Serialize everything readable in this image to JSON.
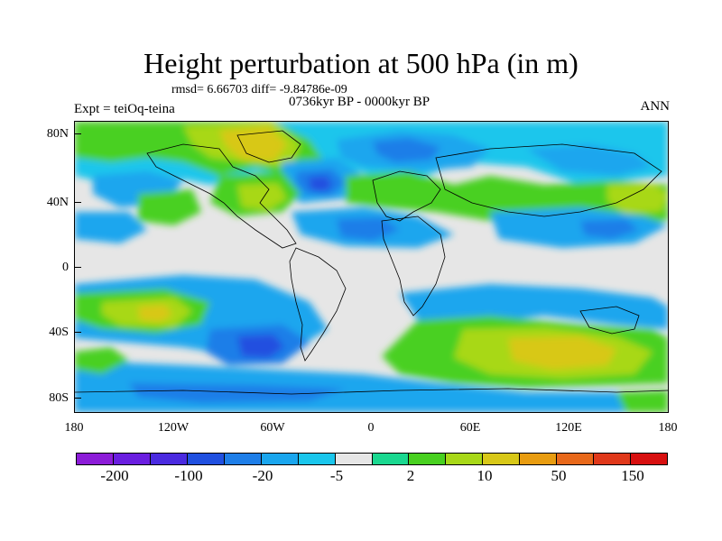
{
  "header": {
    "title": "Height perturbation at 500 hPa (in m)",
    "stats": "rmsd= 6.66703 diff= -9.84786e-09",
    "period": "0736kyr BP - 0000kyr BP",
    "experiment": "Expt = teiOq-teina",
    "season": "ANN"
  },
  "map": {
    "lat_labels": [
      "80N",
      "40N",
      "0",
      "40S",
      "80S"
    ],
    "lon_labels": [
      "180",
      "120W",
      "60W",
      "0",
      "60E",
      "120E",
      "180"
    ],
    "background_color": "#e6e6e6"
  },
  "colorbar": {
    "colors": [
      "#8c1cd8",
      "#6a1ee0",
      "#4a2ae0",
      "#2050e0",
      "#1e7ee8",
      "#1aa6ee",
      "#1ac6ec",
      "#e6e6e6",
      "#1ad890",
      "#48d020",
      "#a8d818",
      "#d8c818",
      "#e89c10",
      "#e8681a",
      "#e0381a",
      "#d81010"
    ],
    "labels": [
      "-200",
      "-100",
      "-20",
      "-5",
      "2",
      "10",
      "50",
      "150"
    ]
  }
}
